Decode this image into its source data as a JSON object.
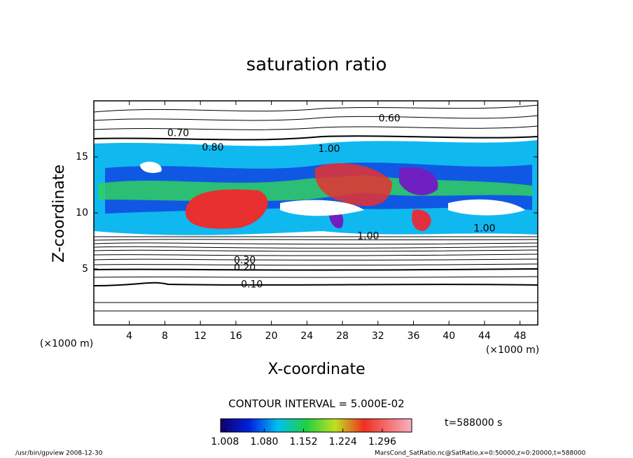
{
  "chart_data": {
    "type": "contour",
    "title": "saturation ratio",
    "xlabel": "X-coordinate",
    "ylabel": "Z-coordinate",
    "xunit_left": "(×1000 m)",
    "xunit_right": "(×1000 m)",
    "xlim": [
      0,
      50
    ],
    "ylim": [
      0,
      20
    ],
    "xticks": [
      4,
      8,
      12,
      16,
      20,
      24,
      28,
      32,
      36,
      40,
      44,
      48
    ],
    "yticks": [
      5,
      10,
      15
    ],
    "contour_labels": [
      {
        "x": 17.8,
        "y": 3.6,
        "label": "0.10"
      },
      {
        "x": 17.0,
        "y": 5.1,
        "label": "0.20"
      },
      {
        "x": 17.0,
        "y": 5.75,
        "label": "0.30"
      },
      {
        "x": 33.3,
        "y": 18.4,
        "label": "0.60"
      },
      {
        "x": 30.9,
        "y": 7.9,
        "label": "1.00"
      },
      {
        "x": 13.4,
        "y": 15.8,
        "label": "0.80"
      },
      {
        "x": 26.5,
        "y": 15.7,
        "label": "1.00"
      },
      {
        "x": 9.5,
        "y": 17.1,
        "label": "0.70"
      },
      {
        "x": 44.0,
        "y": 8.6,
        "label": "1.00"
      }
    ],
    "contour_interval": "CONTOUR INTERVAL = 5.000E-02",
    "clim": [
      1.0,
      1.35
    ],
    "cticks": [
      1.008,
      {
        "value": 1.08,
        "label": "1.080"
      },
      1.152,
      1.224,
      1.296
    ],
    "time": "t=588000 s",
    "footer_left": "/usr/bin/gpview   2008-12-30",
    "footer_right": "MarsCond_SatRatio.nc@SatRatio,x=0:50000,z=0:20000,t=588000"
  }
}
